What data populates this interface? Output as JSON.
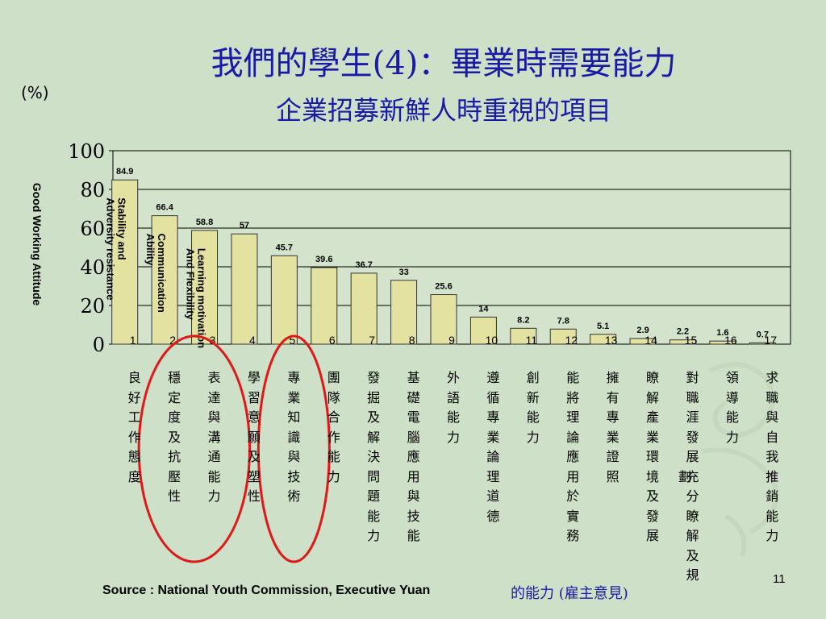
{
  "slide": {
    "title": "我們的學生(4)：畢業時需要能力",
    "subtitle": "企業招募新鮮人時重視的項目",
    "unit": "(%)",
    "source": "Source : National Youth Commission, Executive Yuan",
    "source_suffix": "的能力 (雇主意見)",
    "page_number": "11"
  },
  "colors": {
    "bar": "#e4e2a0",
    "ellipse": "#e01818",
    "title": "#1a1aa6"
  },
  "chart_data": {
    "type": "bar",
    "ylabel": "Good Working Attitude",
    "ylim": [
      0,
      100
    ],
    "yticks": [
      "0",
      "20",
      "40",
      "60",
      "80",
      "100"
    ],
    "grid": true,
    "categories": [
      "1",
      "2",
      "3",
      "4",
      "5",
      "6",
      "7",
      "8",
      "9",
      "10",
      "11",
      "12",
      "13",
      "14",
      "15",
      "16",
      "17"
    ],
    "values": [
      84.9,
      66.4,
      58.8,
      57,
      45.7,
      39.6,
      36.7,
      33,
      25.6,
      14,
      8.2,
      7.8,
      5.1,
      2.9,
      2.2,
      1.6,
      0.7
    ],
    "value_labels": [
      "84.9",
      "66.4",
      "58.8",
      "57",
      "45.7",
      "39.6",
      "36.7",
      "33",
      "25.6",
      "14",
      "8.2",
      "7.8",
      "5.1",
      "2.9",
      "2.2",
      "1.6",
      "0.7"
    ],
    "in_bar_labels": [
      "Stability and\nAdversity resistance",
      "Communication\nAbility",
      "Learning motivation\nAnd Flexibility"
    ],
    "category_names": [
      "良好工作態度",
      "穩定度及抗壓性",
      "表達與溝通能力",
      "學習意願及塑性",
      "專業知識與技術",
      "團隊合作能力",
      "發掘及解決問題能力",
      "基礎電腦應用與技能",
      "外語能力",
      "遵循專業論理道德",
      "創新能力",
      "能將理論應用於實務",
      "擁有專業證照",
      "瞭解產業環境及發展",
      "對職涯發展充分瞭解及規",
      "領導能力",
      "求職與自我推銷能力"
    ],
    "category_extra": "劃",
    "highlighted_categories": [
      "穩定度及抗壓性",
      "表達與溝通能力",
      "專業知識與技術"
    ]
  }
}
